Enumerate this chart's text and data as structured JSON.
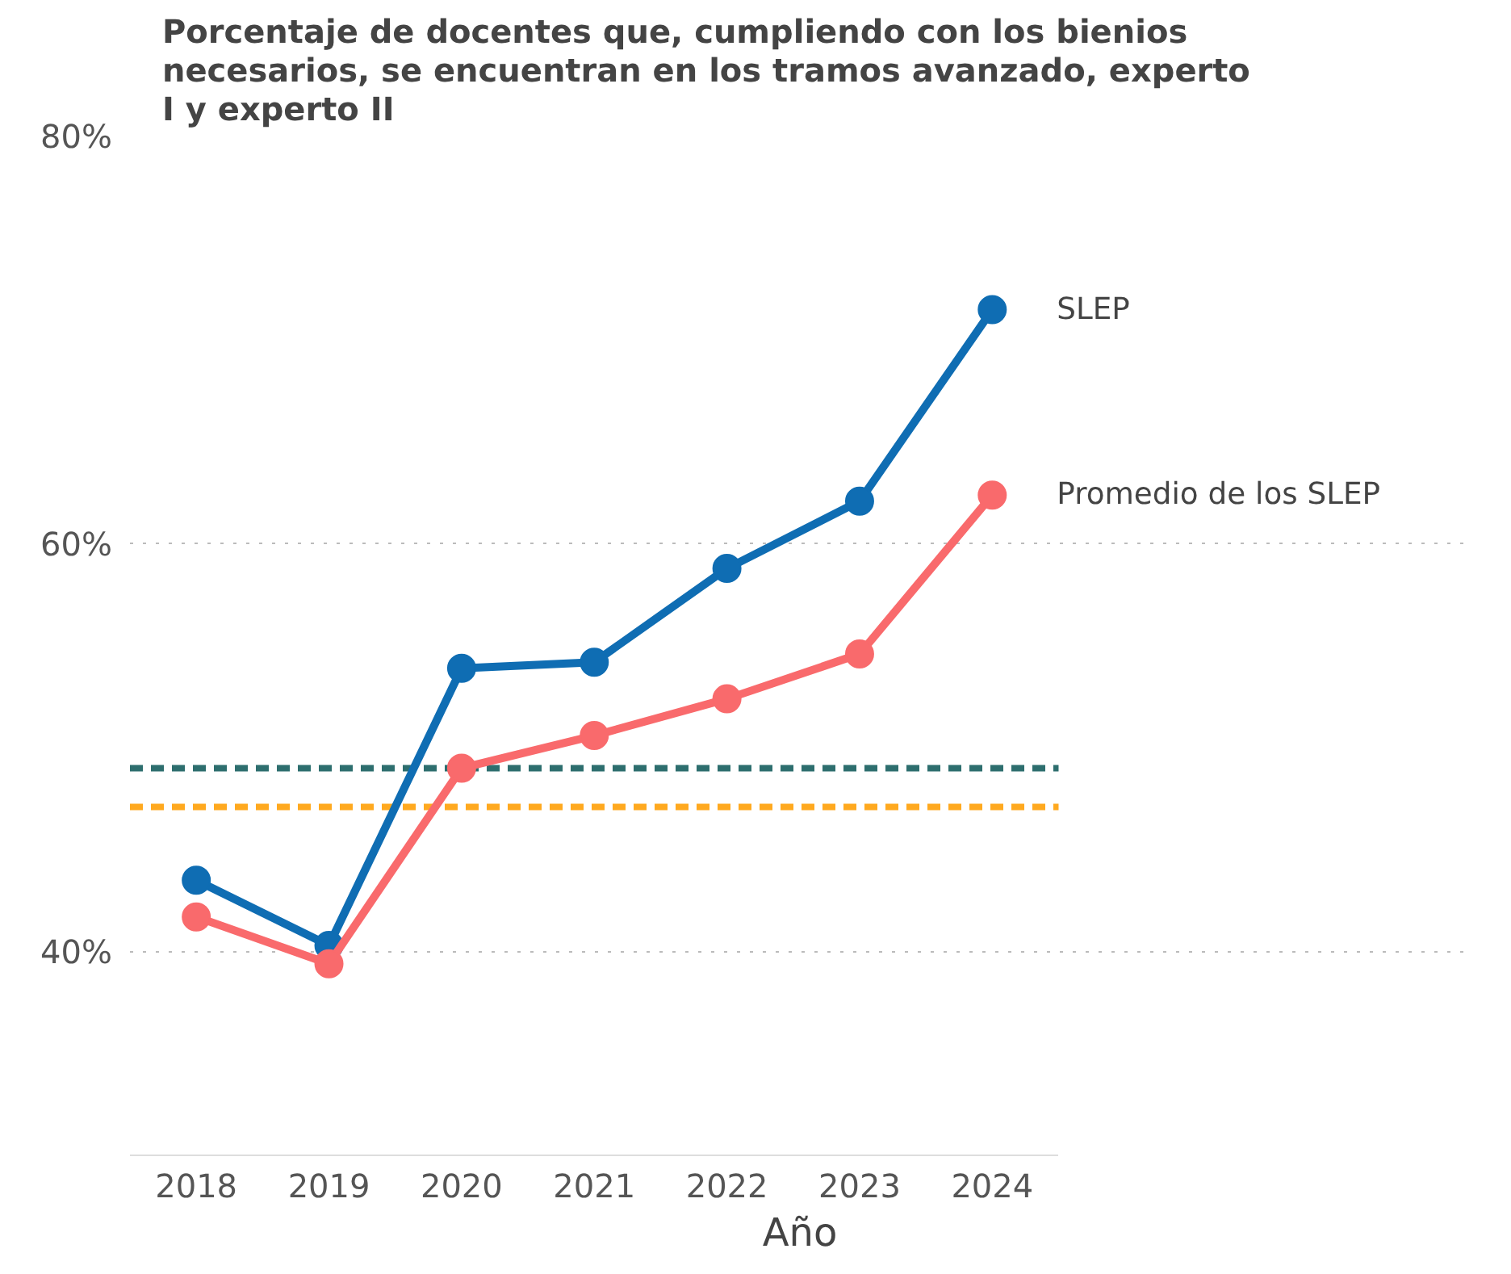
{
  "chart_data": {
    "type": "line",
    "title": "Porcentaje de docentes que, cumpliendo con los bienios necesarios, se encuentran en los tramos avanzado, experto I y experto II",
    "xlabel": "Año",
    "categories": [
      "2018",
      "2019",
      "2020",
      "2021",
      "2022",
      "2023",
      "2024"
    ],
    "series": [
      {
        "name": "SLEP",
        "color": "#0f6db3",
        "values": [
          43.5,
          40.3,
          53.9,
          54.2,
          58.8,
          62.1,
          71.5
        ]
      },
      {
        "name": "Promedio de los SLEP",
        "color": "#f96a6c",
        "values": [
          41.7,
          39.4,
          49.0,
          50.6,
          52.4,
          54.6,
          62.4
        ]
      }
    ],
    "ylim": [
      30,
      80
    ],
    "yticks": [
      {
        "value": 40,
        "label": "40%"
      },
      {
        "value": 60,
        "label": "60%"
      },
      {
        "value": 80,
        "label": "80%"
      }
    ],
    "ref_lines": [
      {
        "axis": "y",
        "value": 49.0,
        "color": "#2d6e6e",
        "line_style": "dashed"
      },
      {
        "axis": "y",
        "value": 47.1,
        "color": "#ffa91f",
        "line_style": "dashed"
      }
    ],
    "grid": "y",
    "marker": "circle",
    "line_style": "solid"
  }
}
